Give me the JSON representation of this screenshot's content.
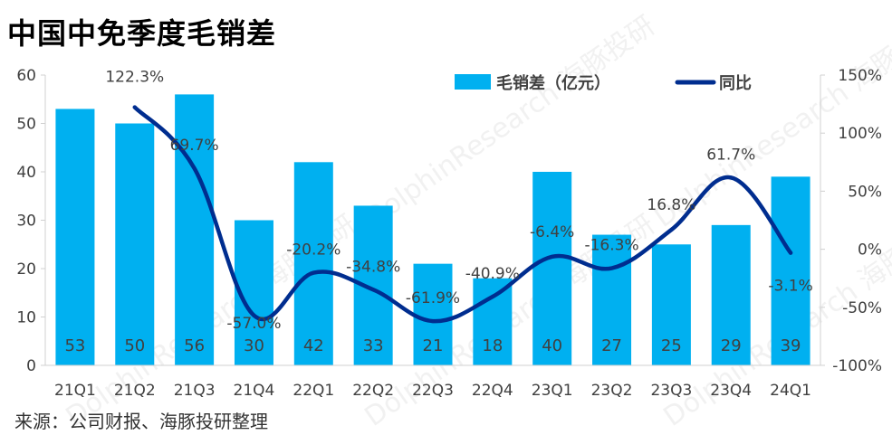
{
  "title": "中国中免季度毛销差",
  "source": "来源：公司财报、海豚投研整理",
  "watermark": "DolphinResearch 海豚投研",
  "colors": {
    "bar": "#00b0f0",
    "line": "#002d8f",
    "axis": "#d0d0d0",
    "text": "#404040"
  },
  "chart_data": {
    "type": "bar",
    "categories": [
      "21Q1",
      "21Q2",
      "21Q3",
      "21Q4",
      "22Q1",
      "22Q2",
      "22Q3",
      "22Q4",
      "23Q1",
      "23Q2",
      "23Q3",
      "23Q4",
      "24Q1"
    ],
    "series": [
      {
        "name": "毛销差（亿元）",
        "type": "bar",
        "axis": "left",
        "values": [
          53,
          50,
          56,
          30,
          42,
          33,
          21,
          18,
          40,
          27,
          25,
          29,
          39
        ],
        "labels": [
          "53",
          "50",
          "56",
          "30",
          "42",
          "33",
          "21",
          "18",
          "40",
          "27",
          "25",
          "29",
          "39"
        ]
      },
      {
        "name": "同比",
        "type": "line",
        "axis": "right",
        "values": [
          null,
          122.3,
          69.7,
          -57.0,
          -20.2,
          -34.8,
          -61.9,
          -40.9,
          -6.4,
          -16.3,
          16.8,
          61.7,
          -3.1
        ],
        "labels": [
          "",
          "122.3%",
          "69.7%",
          "-57.0%",
          "-20.2%",
          "-34.8%",
          "-61.9%",
          "-40.9%",
          "-6.4%",
          "-16.3%",
          "16.8%",
          "61.7%",
          "-3.1%"
        ]
      }
    ],
    "y_left": {
      "range": [
        0,
        60
      ],
      "ticks": [
        "0",
        "10",
        "20",
        "30",
        "40",
        "50",
        "60"
      ]
    },
    "y_right": {
      "range": [
        -100,
        150
      ],
      "ticks": [
        "-100%",
        "-50%",
        "0%",
        "50%",
        "100%",
        "150%"
      ]
    },
    "legend": {
      "position": "top-right",
      "entries": [
        "毛销差（亿元）",
        "同比"
      ]
    },
    "grid": false
  }
}
